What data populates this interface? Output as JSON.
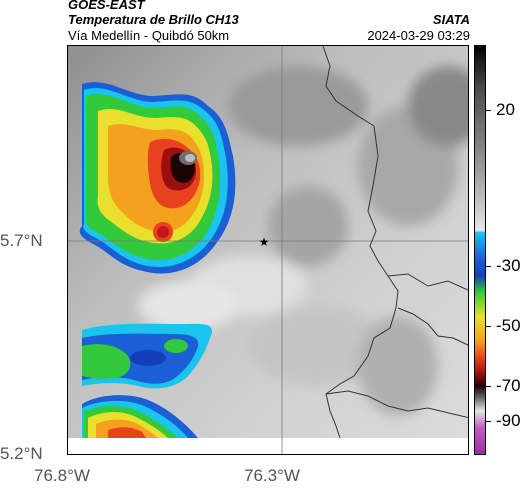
{
  "header": {
    "satellite": "GOES-EAST",
    "product": "Temperatura de Brillo CH13",
    "region": "Vía Medellín - Quibdó 50km",
    "source": "SIATA",
    "datetime": "2024-03-29 03:29"
  },
  "map": {
    "lat_ticks": [
      "5.7°N",
      "5.2°N"
    ],
    "lon_ticks": [
      "76.8°W",
      "76.3°W"
    ],
    "marker_icon": "star-icon",
    "colors": {
      "background_gray": "#cfcfcf",
      "gridline": "#7a7a7a",
      "border_line": "#333333"
    }
  },
  "colorbar": {
    "labels": [
      "20",
      "-30",
      "-50",
      "-70",
      "-90"
    ],
    "unit_hint": "brightness temperature"
  }
}
